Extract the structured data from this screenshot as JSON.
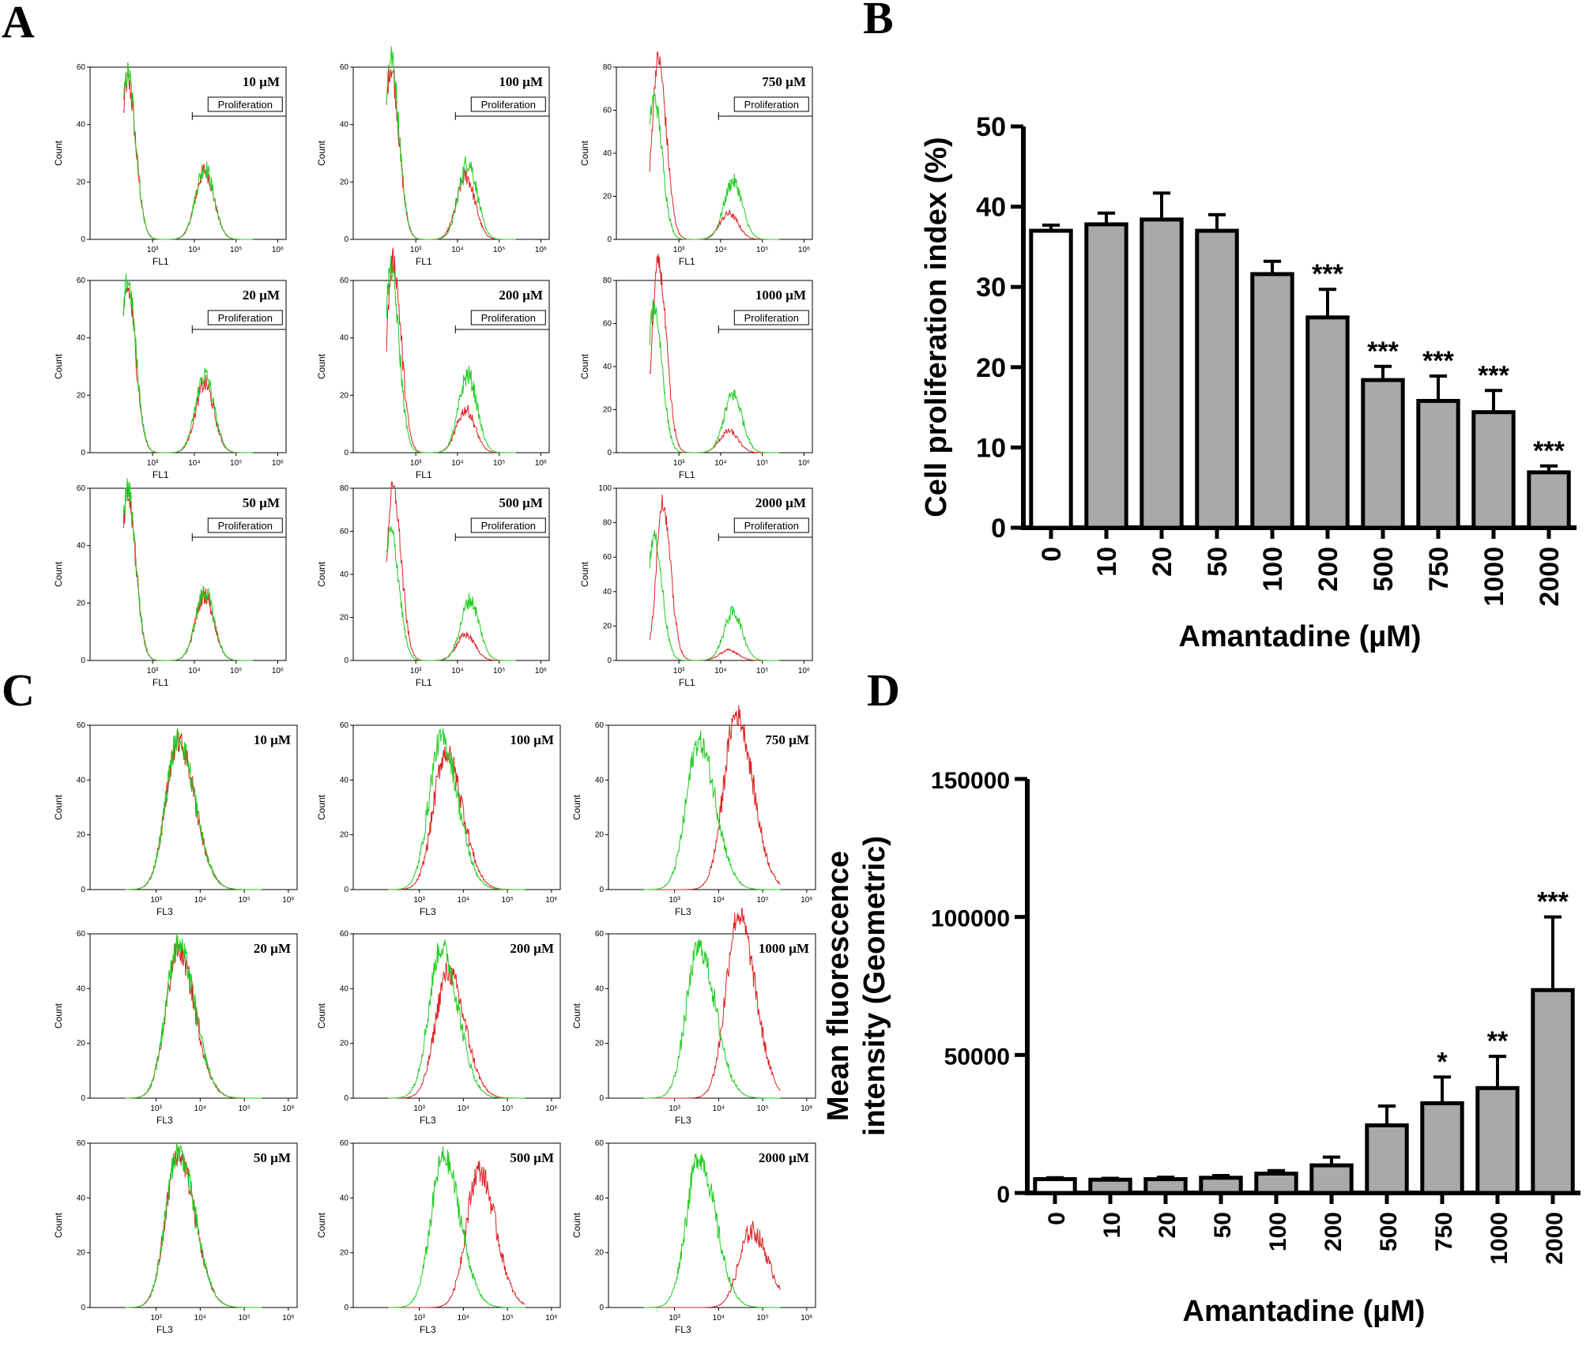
{
  "panels": {
    "a": "A",
    "b": "B",
    "c": "C",
    "d": "D"
  },
  "histogram_common": {
    "count_label": "Count",
    "gate_label": "Proliferation",
    "x_ticks": [
      "10³",
      "10⁴",
      "10⁵",
      "10⁶"
    ],
    "green_color": "#22cc22",
    "red_color": "#dd2222"
  },
  "chart_data": [
    {
      "panel": "A",
      "type": "histogram-grid",
      "x_label": "FL1",
      "gate": true,
      "histograms": [
        {
          "conc": "10 µM",
          "ymax": 60,
          "yticks": [
            0,
            20,
            40,
            60
          ],
          "green": {
            "peak1": [
              2.4,
              58
            ],
            "peak2": [
              4.25,
              25
            ]
          },
          "red": {
            "peak1": [
              2.4,
              55
            ],
            "peak2": [
              4.25,
              24
            ]
          }
        },
        {
          "conc": "100 µM",
          "ymax": 60,
          "yticks": [
            0,
            20,
            40,
            60
          ],
          "green": {
            "peak1": [
              2.4,
              64
            ],
            "peak2": [
              4.25,
              27
            ]
          },
          "red": {
            "peak1": [
              2.4,
              60
            ],
            "peak2": [
              4.2,
              22
            ]
          }
        },
        {
          "conc": "750 µM",
          "ymax": 80,
          "yticks": [
            0,
            20,
            40,
            60,
            80
          ],
          "green": {
            "peak1": [
              2.4,
              66
            ],
            "peak2": [
              4.3,
              27
            ]
          },
          "red": {
            "peak1": [
              2.5,
              84
            ],
            "peak2": [
              4.2,
              12
            ]
          }
        },
        {
          "conc": "20 µM",
          "ymax": 60,
          "yticks": [
            0,
            20,
            40,
            60
          ],
          "green": {
            "peak1": [
              2.4,
              60
            ],
            "peak2": [
              4.25,
              27
            ]
          },
          "red": {
            "peak1": [
              2.4,
              57
            ],
            "peak2": [
              4.25,
              24
            ]
          }
        },
        {
          "conc": "200 µM",
          "ymax": 60,
          "yticks": [
            0,
            20,
            40,
            60
          ],
          "green": {
            "peak1": [
              2.4,
              64
            ],
            "peak2": [
              4.25,
              27
            ]
          },
          "red": {
            "peak1": [
              2.45,
              67
            ],
            "peak2": [
              4.2,
              15
            ]
          }
        },
        {
          "conc": "1000 µM",
          "ymax": 80,
          "yticks": [
            0,
            20,
            40,
            60,
            80
          ],
          "green": {
            "peak1": [
              2.4,
              68
            ],
            "peak2": [
              4.3,
              27
            ]
          },
          "red": {
            "peak1": [
              2.5,
              88
            ],
            "peak2": [
              4.2,
              10
            ]
          }
        },
        {
          "conc": "50 µM",
          "ymax": 60,
          "yticks": [
            0,
            20,
            40,
            60
          ],
          "green": {
            "peak1": [
              2.4,
              60
            ],
            "peak2": [
              4.25,
              24
            ]
          },
          "red": {
            "peak1": [
              2.4,
              57
            ],
            "peak2": [
              4.25,
              23
            ]
          }
        },
        {
          "conc": "500 µM",
          "ymax": 80,
          "yticks": [
            0,
            20,
            40,
            60,
            80
          ],
          "green": {
            "peak1": [
              2.4,
              60
            ],
            "peak2": [
              4.3,
              28
            ]
          },
          "red": {
            "peak1": [
              2.45,
              80
            ],
            "peak2": [
              4.2,
              12
            ]
          }
        },
        {
          "conc": "2000 µM",
          "ymax": 100,
          "yticks": [
            0,
            20,
            40,
            60,
            80,
            100
          ],
          "green": {
            "peak1": [
              2.4,
              72
            ],
            "peak2": [
              4.3,
              28
            ]
          },
          "red": {
            "peak1": [
              2.6,
              92
            ],
            "peak2": [
              4.2,
              6
            ]
          }
        }
      ]
    },
    {
      "panel": "B",
      "type": "bar",
      "categories": [
        "0",
        "10",
        "20",
        "50",
        "100",
        "200",
        "500",
        "750",
        "1000",
        "2000"
      ],
      "values": [
        37.0,
        37.8,
        38.4,
        37.0,
        31.6,
        26.2,
        18.4,
        15.8,
        14.4,
        6.9
      ],
      "errors": [
        0.7,
        1.4,
        3.3,
        2.0,
        1.6,
        3.5,
        1.7,
        3.1,
        2.7,
        0.8
      ],
      "significance": [
        "",
        "",
        "",
        "",
        "",
        "***",
        "***",
        "***",
        "***",
        "***"
      ],
      "bar_colors": [
        "#ffffff",
        "#a9a9a9",
        "#a9a9a9",
        "#a9a9a9",
        "#a9a9a9",
        "#a9a9a9",
        "#a9a9a9",
        "#a9a9a9",
        "#a9a9a9",
        "#a9a9a9"
      ],
      "ylabel": "Cell proliferation index (%)",
      "xlabel": "Amantadine (µM)",
      "yticks": [
        0,
        10,
        20,
        30,
        40,
        50
      ],
      "ylim": [
        0,
        50
      ]
    },
    {
      "panel": "C",
      "type": "histogram-grid",
      "x_label": "FL3",
      "gate": false,
      "histograms": [
        {
          "conc": "10 µM",
          "ymax": 60,
          "yticks": [
            0,
            20,
            40,
            60
          ],
          "green": {
            "peak1": [
              3.5,
              55
            ]
          },
          "red": {
            "peak1": [
              3.5,
              54
            ]
          }
        },
        {
          "conc": "100 µM",
          "ymax": 60,
          "yticks": [
            0,
            20,
            40,
            60
          ],
          "green": {
            "peak1": [
              3.5,
              55
            ]
          },
          "red": {
            "peak1": [
              3.6,
              50
            ]
          }
        },
        {
          "conc": "750 µM",
          "ymax": 60,
          "yticks": [
            0,
            20,
            40,
            60
          ],
          "green": {
            "peak1": [
              3.55,
              54
            ]
          },
          "red": {
            "peak1": [
              4.4,
              64
            ]
          }
        },
        {
          "conc": "20 µM",
          "ymax": 60,
          "yticks": [
            0,
            20,
            40,
            60
          ],
          "green": {
            "peak1": [
              3.5,
              56
            ]
          },
          "red": {
            "peak1": [
              3.5,
              54
            ]
          }
        },
        {
          "conc": "200 µM",
          "ymax": 60,
          "yticks": [
            0,
            20,
            40,
            60
          ],
          "green": {
            "peak1": [
              3.5,
              55
            ]
          },
          "red": {
            "peak1": [
              3.65,
              46
            ]
          }
        },
        {
          "conc": "1000 µM",
          "ymax": 60,
          "yticks": [
            0,
            20,
            40,
            60
          ],
          "green": {
            "peak1": [
              3.55,
              55
            ]
          },
          "red": {
            "peak1": [
              4.45,
              67
            ]
          }
        },
        {
          "conc": "50 µM",
          "ymax": 60,
          "yticks": [
            0,
            20,
            40,
            60
          ],
          "green": {
            "peak1": [
              3.5,
              57
            ]
          },
          "red": {
            "peak1": [
              3.5,
              56
            ]
          }
        },
        {
          "conc": "500 µM",
          "ymax": 60,
          "yticks": [
            0,
            20,
            40,
            60
          ],
          "green": {
            "peak1": [
              3.55,
              55
            ]
          },
          "red": {
            "peak1": [
              4.35,
              50
            ]
          }
        },
        {
          "conc": "2000 µM",
          "ymax": 60,
          "yticks": [
            0,
            20,
            40,
            60
          ],
          "green": {
            "peak1": [
              3.55,
              55
            ]
          },
          "red": {
            "peak1": [
              4.75,
              28
            ]
          }
        }
      ]
    },
    {
      "panel": "D",
      "type": "bar",
      "categories": [
        "0",
        "10",
        "20",
        "50",
        "100",
        "200",
        "500",
        "750",
        "1000",
        "2000"
      ],
      "values": [
        5000,
        4800,
        5000,
        5500,
        7000,
        10000,
        24500,
        32500,
        38000,
        73500
      ],
      "errors": [
        500,
        500,
        700,
        800,
        1100,
        3000,
        7000,
        9500,
        11500,
        26500
      ],
      "significance": [
        "",
        "",
        "",
        "",
        "",
        "",
        "",
        "*",
        "**",
        "***"
      ],
      "bar_colors": [
        "#ffffff",
        "#a9a9a9",
        "#a9a9a9",
        "#a9a9a9",
        "#a9a9a9",
        "#a9a9a9",
        "#a9a9a9",
        "#a9a9a9",
        "#a9a9a9",
        "#a9a9a9"
      ],
      "ylabel_line1": "Mean fluorescence",
      "ylabel_line2": "intensity (Geometric)",
      "xlabel": "Amantadine (µM)",
      "yticks": [
        0,
        50000,
        100000,
        150000
      ],
      "ylim": [
        0,
        150000
      ]
    }
  ]
}
